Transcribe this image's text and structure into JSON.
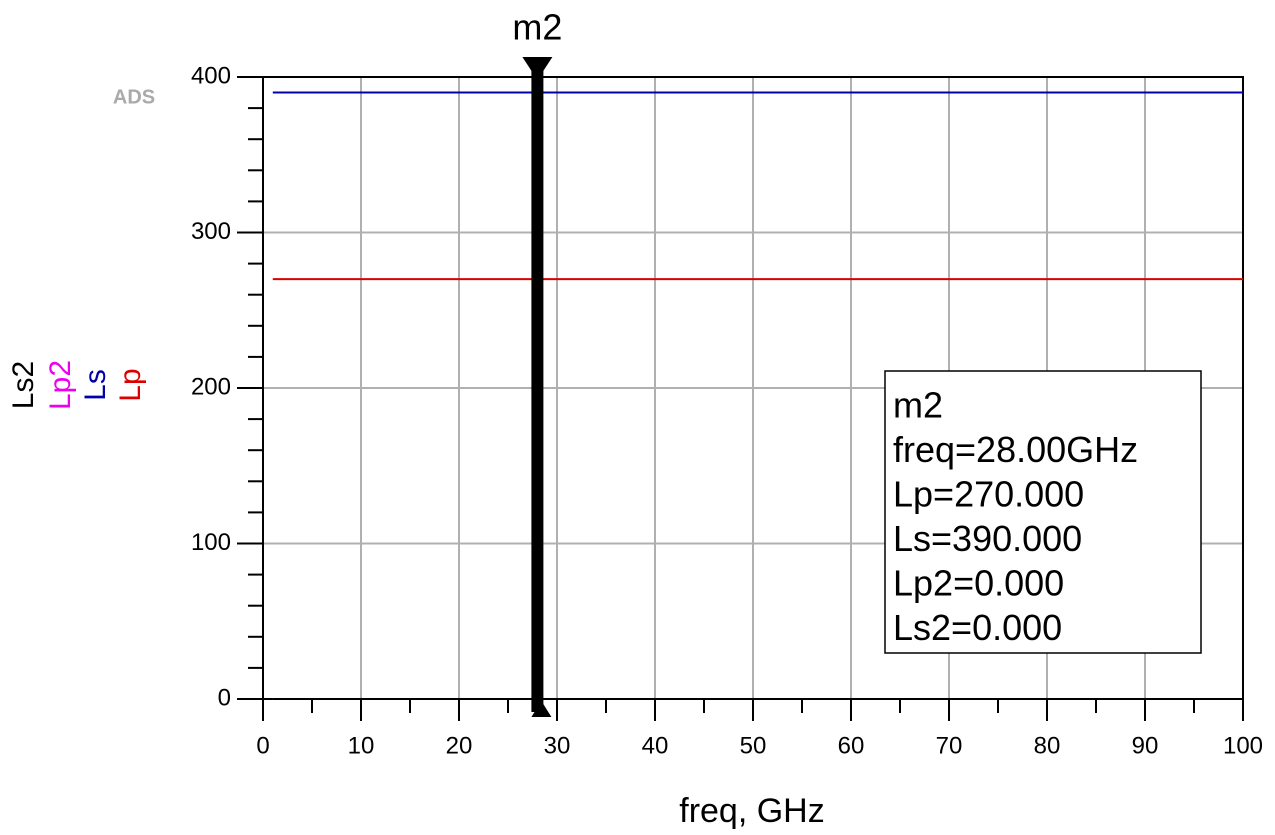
{
  "chart_data": {
    "type": "line",
    "watermark": "ADS",
    "x_label": "freq, GHz",
    "series": [
      {
        "name": "Lp",
        "color": "#dd0000",
        "x": [
          1,
          100
        ],
        "values": [
          270,
          270
        ]
      },
      {
        "name": "Ls",
        "color": "#0000aa",
        "x": [
          1,
          100
        ],
        "values": [
          390,
          390
        ]
      },
      {
        "name": "Lp2",
        "color": "#ee00ee",
        "x": [
          1,
          100
        ],
        "values": [
          0,
          0
        ]
      },
      {
        "name": "Ls2",
        "color": "#000000",
        "x": [
          1,
          100
        ],
        "values": [
          0,
          0
        ]
      }
    ],
    "xlim": [
      0,
      100
    ],
    "xticks": [
      0,
      10,
      20,
      30,
      40,
      50,
      60,
      70,
      80,
      90,
      100
    ],
    "x_minor_ticks": [
      5,
      15,
      25,
      35,
      45,
      55,
      65,
      75,
      85,
      95
    ],
    "ylim": [
      0,
      400
    ],
    "yticks": [
      0,
      100,
      200,
      300,
      400
    ],
    "y_minor_ticks": [
      20,
      40,
      60,
      80,
      120,
      140,
      160,
      180,
      220,
      240,
      260,
      280,
      320,
      340,
      360,
      380
    ],
    "grid": true,
    "marker": {
      "name": "m2",
      "x": 28,
      "readout": [
        "m2",
        "freq=28.00GHz",
        "Lp=270.000",
        "Ls=390.000",
        "Lp2=0.000",
        "Ls2=0.000"
      ]
    }
  }
}
